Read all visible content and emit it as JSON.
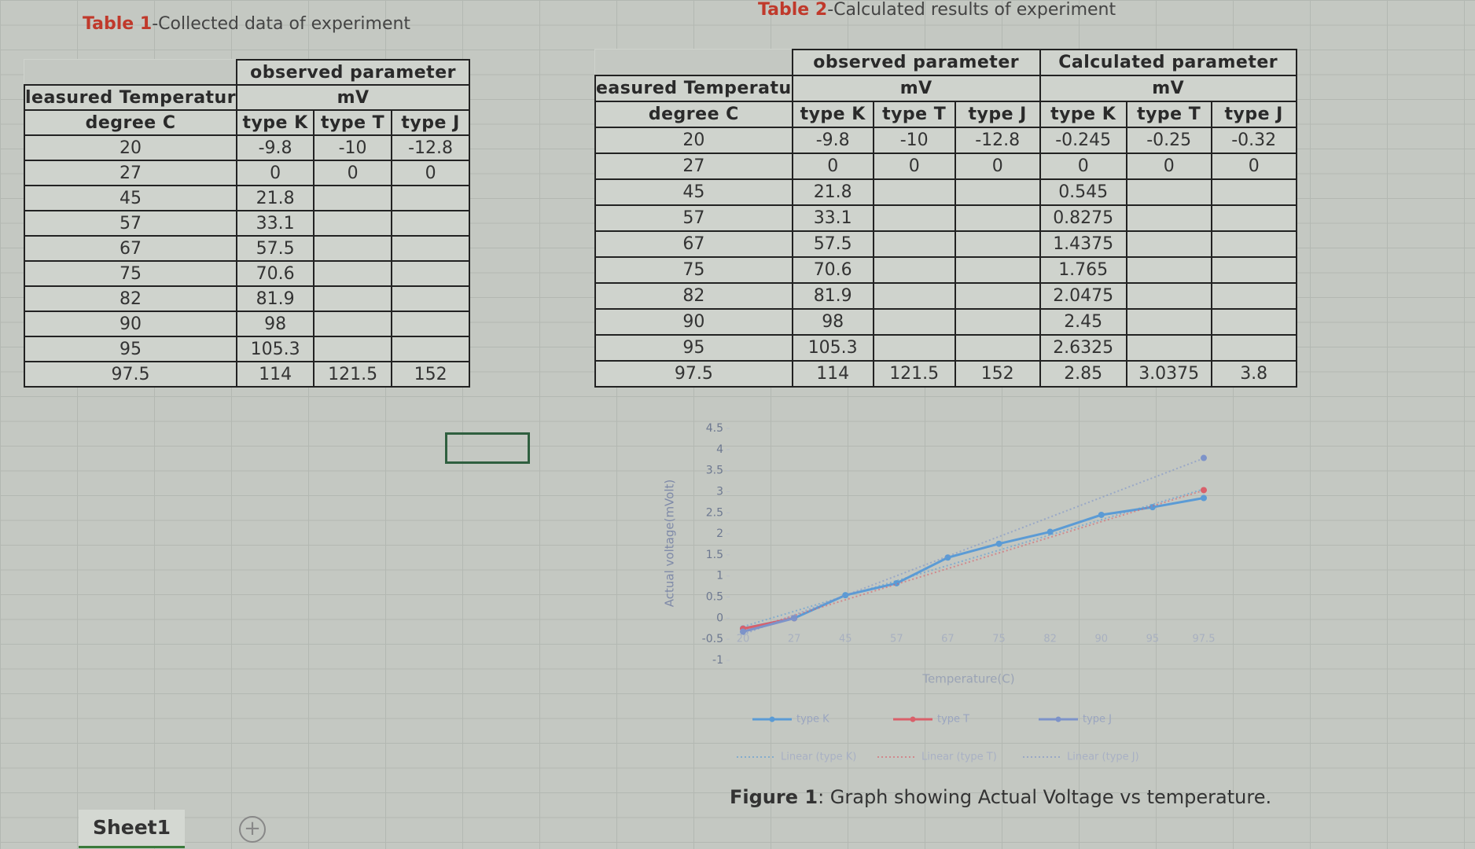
{
  "table1": {
    "title_label": "Table 1",
    "title_text": "-Collected data of experiment",
    "group": "observed parameter",
    "unit": "mV",
    "temp_header_1": "leasured Temperatur",
    "temp_header_2": "degree C",
    "columns": [
      "type K",
      "type T",
      "type J"
    ],
    "rows": [
      [
        20,
        -9.8,
        -10,
        -12.8
      ],
      [
        27,
        0,
        0,
        0
      ],
      [
        45,
        21.8,
        null,
        null
      ],
      [
        57,
        33.1,
        null,
        null
      ],
      [
        67,
        57.5,
        null,
        null
      ],
      [
        75,
        70.6,
        null,
        null
      ],
      [
        82,
        81.9,
        null,
        null
      ],
      [
        90,
        98,
        null,
        null
      ],
      [
        95,
        105.3,
        null,
        null
      ],
      [
        97.5,
        114,
        121.5,
        152
      ]
    ]
  },
  "table2": {
    "title_label": "Table 2",
    "title_text": "-Calculated results of experiment",
    "groups": [
      "observed parameter",
      "Calculated parameter"
    ],
    "units": [
      "mV",
      "mV"
    ],
    "temp_header_1": "easured Temperatu",
    "temp_header_2": "degree C",
    "columns": [
      "type K",
      "type T",
      "type J",
      "type K",
      "type T",
      "type J"
    ],
    "rows": [
      [
        20,
        -9.8,
        -10,
        -12.8,
        -0.245,
        -0.25,
        -0.32
      ],
      [
        27,
        0,
        0,
        0,
        0,
        0,
        0
      ],
      [
        45,
        21.8,
        null,
        null,
        0.545,
        null,
        null
      ],
      [
        57,
        33.1,
        null,
        null,
        0.8275,
        null,
        null
      ],
      [
        67,
        57.5,
        null,
        null,
        1.4375,
        null,
        null
      ],
      [
        75,
        70.6,
        null,
        null,
        1.765,
        null,
        null
      ],
      [
        82,
        81.9,
        null,
        null,
        2.0475,
        null,
        null
      ],
      [
        90,
        98,
        null,
        null,
        2.45,
        null,
        null
      ],
      [
        95,
        105.3,
        null,
        null,
        2.6325,
        null,
        null
      ],
      [
        97.5,
        114,
        121.5,
        152,
        2.85,
        3.0375,
        3.8
      ]
    ]
  },
  "chart_data": {
    "type": "line",
    "x_label": "Temperature(C)",
    "y_label": "Actual voltage(mVolt)",
    "categories": [
      20,
      27,
      45,
      57,
      67,
      75,
      82,
      90,
      95,
      97.5
    ],
    "series": [
      {
        "name": "type K",
        "color": "#5b9bd5",
        "trendline": "Linear (type K)",
        "values": [
          -0.245,
          0,
          0.545,
          0.8275,
          1.4375,
          1.765,
          2.0475,
          2.45,
          2.6325,
          2.85
        ]
      },
      {
        "name": "type T",
        "color": "#d9606a",
        "trendline": "Linear (type T)",
        "values": [
          -0.25,
          0,
          null,
          null,
          null,
          null,
          null,
          null,
          null,
          3.0375
        ]
      },
      {
        "name": "type J",
        "color": "#7d93c9",
        "trendline": "Linear (type J)",
        "values": [
          -0.32,
          0,
          null,
          null,
          null,
          null,
          null,
          null,
          null,
          3.8
        ]
      }
    ],
    "ylim": [
      -1,
      4.5
    ],
    "yticks": [
      -1,
      -0.5,
      0,
      0.5,
      1,
      1.5,
      2,
      2.5,
      3,
      3.5,
      4,
      4.5
    ]
  },
  "figure": {
    "label": "Figure 1",
    "text": ": Graph showing Actual Voltage vs temperature."
  },
  "sheet_tab": "Sheet1"
}
